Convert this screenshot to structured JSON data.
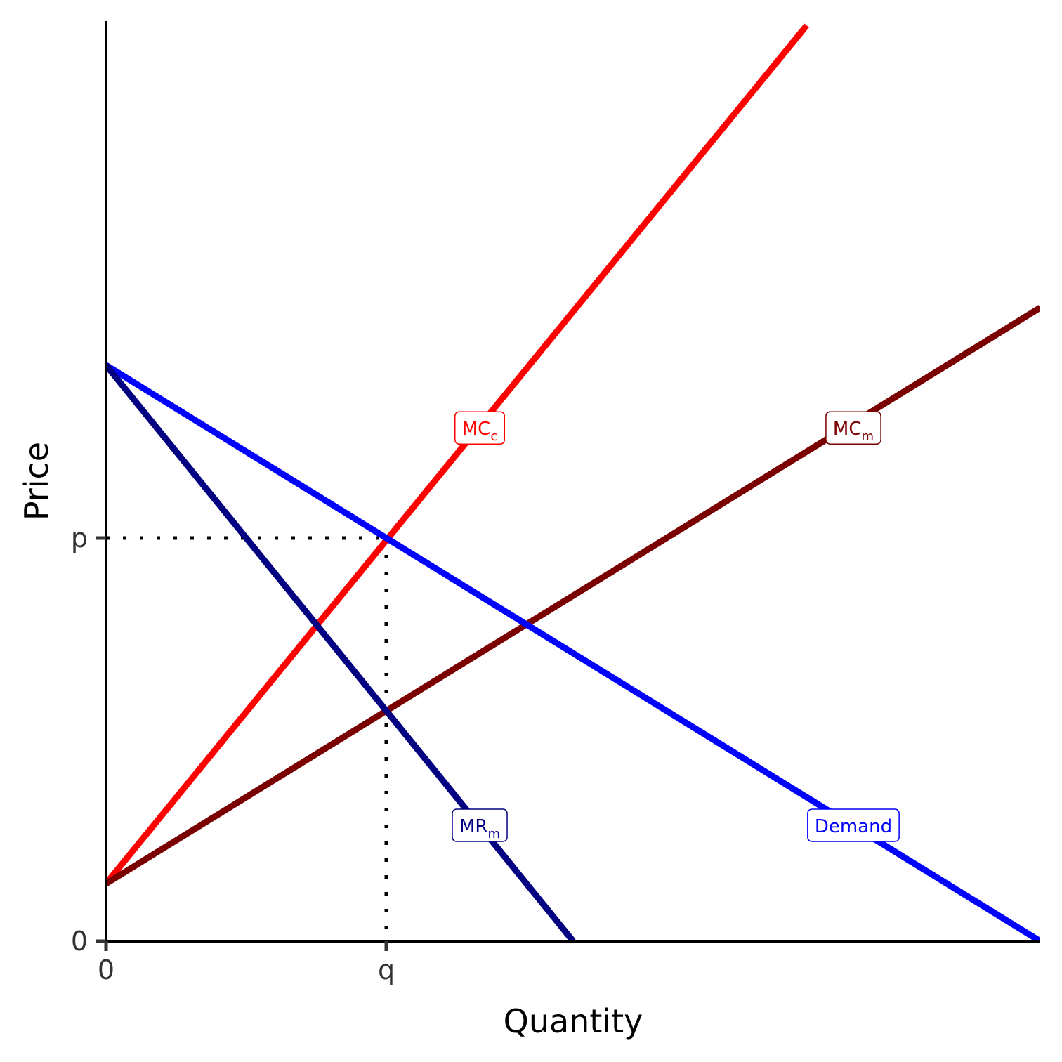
{
  "chart_data": {
    "type": "line",
    "xlabel": "Quantity",
    "ylabel": "Price",
    "xlim": [
      0,
      10
    ],
    "ylim": [
      0,
      10
    ],
    "x_ticks": [
      {
        "value": 0,
        "label": "0"
      },
      {
        "value": 3,
        "label": "q"
      }
    ],
    "y_ticks": [
      {
        "value": 0,
        "label": "0"
      },
      {
        "value": 7,
        "label": "p"
      }
    ],
    "grid": false,
    "legend": "none",
    "series": [
      {
        "key": "mcc",
        "label": "MC",
        "label_sub": "c",
        "color": "#ff0000",
        "points": [
          [
            0,
            1
          ],
          [
            7.5,
            15.9
          ]
        ],
        "label_at": [
          4,
          8.9
        ]
      },
      {
        "key": "mcm",
        "label": "MC",
        "label_sub": "m",
        "color": "#7a0000",
        "points": [
          [
            0,
            1
          ],
          [
            10,
            11
          ]
        ],
        "label_at": [
          8,
          8.9
        ]
      },
      {
        "key": "demand",
        "label": "Demand",
        "label_sub": "",
        "color": "#0000ff",
        "points": [
          [
            0,
            10
          ],
          [
            10,
            0
          ]
        ],
        "label_at": [
          8,
          2
        ]
      },
      {
        "key": "mrm",
        "label": "MR",
        "label_sub": "m",
        "color": "#000080",
        "points": [
          [
            0,
            10
          ],
          [
            5,
            0
          ]
        ],
        "label_at": [
          4,
          2
        ]
      }
    ],
    "guides": [
      {
        "from": [
          0,
          7
        ],
        "to": [
          3,
          7
        ],
        "style": "dotted"
      },
      {
        "from": [
          3,
          7
        ],
        "to": [
          3,
          0
        ],
        "style": "dotted"
      }
    ]
  }
}
